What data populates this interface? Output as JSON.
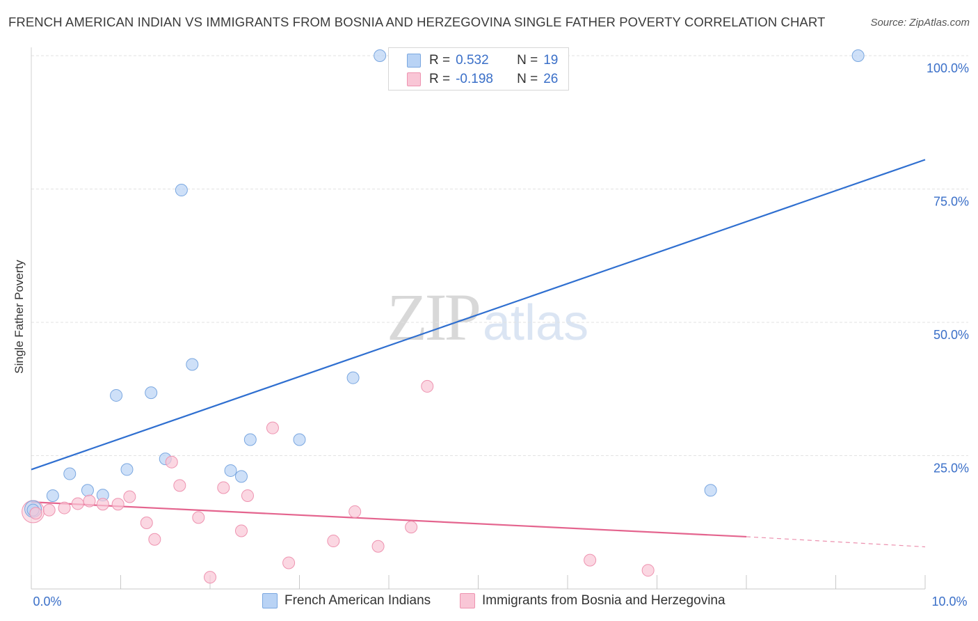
{
  "title": "FRENCH AMERICAN INDIAN VS IMMIGRANTS FROM BOSNIA AND HERZEGOVINA SINGLE FATHER POVERTY CORRELATION CHART",
  "source": "Source: ZipAtlas.com",
  "watermark": {
    "zip": "ZIP",
    "atlas": "atlas"
  },
  "legend": {
    "rows": [
      {
        "r_label": "R =",
        "r_value": "0.532",
        "n_label": "N =",
        "n_value": "19"
      },
      {
        "r_label": "R =",
        "r_value": "-0.198",
        "n_label": "N =",
        "n_value": "26"
      }
    ]
  },
  "bottom_legend": [
    "French American Indians",
    "Immigrants from Bosnia and Herzegovina"
  ],
  "colors": {
    "blue_fill": "#b9d3f5",
    "blue_stroke": "#7aa7e0",
    "blue_line": "#2f6fd0",
    "pink_fill": "#f9c6d6",
    "pink_stroke": "#ee93b0",
    "pink_line": "#e4648e",
    "tick_text": "#3a6fc8",
    "grid": "#e2e2e2"
  },
  "chart_data": {
    "type": "scatter",
    "title": "FRENCH AMERICAN INDIAN VS IMMIGRANTS FROM BOSNIA AND HERZEGOVINA SINGLE FATHER POVERTY CORRELATION CHART",
    "xlabel": "",
    "ylabel": "Single Father Poverty",
    "xlim": [
      0,
      10
    ],
    "ylim": [
      0,
      100
    ],
    "x_tick_labels": [
      "0.0%",
      "10.0%"
    ],
    "y_tick_labels": [
      "100.0%",
      "75.0%",
      "50.0%",
      "25.0%"
    ],
    "y_ticks": [
      100,
      75,
      50,
      25
    ],
    "grid": true,
    "series": [
      {
        "name": "French American Indians",
        "color": "#b9d3f5",
        "r": 0.532,
        "n": 19,
        "points": [
          [
            0.02,
            14.8
          ],
          [
            0.24,
            17.5
          ],
          [
            0.43,
            21.6
          ],
          [
            0.63,
            18.5
          ],
          [
            0.8,
            17.6
          ],
          [
            0.95,
            36.3
          ],
          [
            1.07,
            22.4
          ],
          [
            1.34,
            36.8
          ],
          [
            1.5,
            24.4
          ],
          [
            1.68,
            74.8
          ],
          [
            1.8,
            42.1
          ],
          [
            2.23,
            22.2
          ],
          [
            2.35,
            21.1
          ],
          [
            2.45,
            28.0
          ],
          [
            3.0,
            28.0
          ],
          [
            3.6,
            39.6
          ],
          [
            3.9,
            100.0
          ],
          [
            7.6,
            18.5
          ],
          [
            9.25,
            100.0
          ]
        ],
        "trend": {
          "x": [
            0,
            10
          ],
          "y": [
            22.4,
            80.5
          ],
          "style": "solid"
        }
      },
      {
        "name": "Immigrants from Bosnia and Herzegovina",
        "color": "#f9c6d6",
        "r": -0.198,
        "n": 26,
        "points": [
          [
            0.05,
            14.2
          ],
          [
            0.2,
            14.8
          ],
          [
            0.37,
            15.2
          ],
          [
            0.52,
            16.0
          ],
          [
            0.65,
            16.5
          ],
          [
            0.8,
            15.9
          ],
          [
            0.97,
            15.9
          ],
          [
            1.1,
            17.3
          ],
          [
            1.29,
            12.4
          ],
          [
            1.38,
            9.3
          ],
          [
            1.57,
            23.8
          ],
          [
            1.66,
            19.4
          ],
          [
            1.87,
            13.4
          ],
          [
            2.0,
            2.2
          ],
          [
            2.15,
            19.0
          ],
          [
            2.35,
            10.9
          ],
          [
            2.42,
            17.5
          ],
          [
            2.7,
            30.2
          ],
          [
            2.88,
            4.9
          ],
          [
            3.38,
            9.0
          ],
          [
            3.62,
            14.5
          ],
          [
            3.88,
            8.0
          ],
          [
            4.25,
            11.6
          ],
          [
            4.43,
            38.0
          ],
          [
            6.25,
            5.4
          ],
          [
            6.9,
            3.5
          ]
        ],
        "trend": {
          "x": [
            0,
            8
          ],
          "y": [
            16.3,
            9.8
          ],
          "style": "solid",
          "dashed_extension": {
            "x": [
              8,
              10
            ],
            "y": [
              9.8,
              7.9
            ]
          }
        }
      }
    ]
  }
}
